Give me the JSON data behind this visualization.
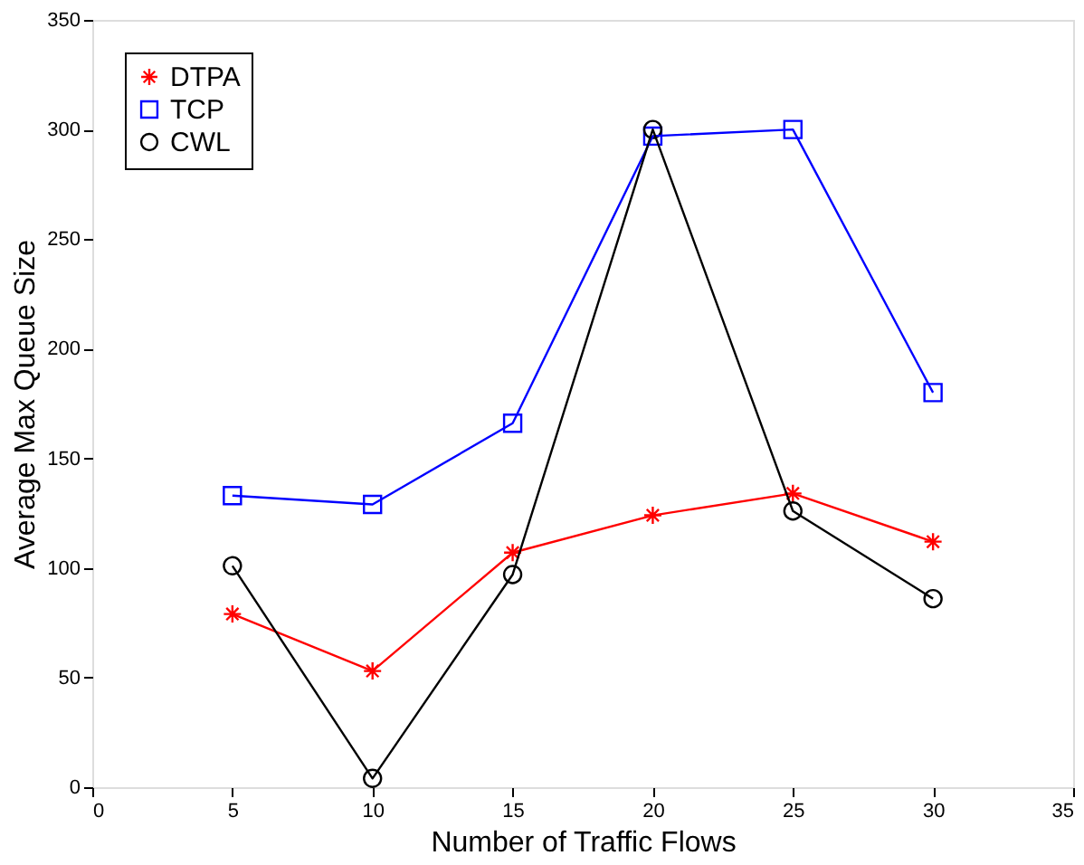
{
  "chart_data": {
    "type": "line",
    "xlabel": "Number of Traffic Flows",
    "ylabel": "Average Max Queue Size",
    "x": [
      5,
      10,
      15,
      20,
      25,
      30
    ],
    "series": [
      {
        "name": "DTPA",
        "color": "#ff0000",
        "marker": "cross",
        "values": [
          79,
          53,
          107,
          124,
          134,
          112
        ]
      },
      {
        "name": "TCP",
        "color": "#0000ff",
        "marker": "square",
        "values": [
          133,
          129,
          166,
          297,
          300,
          180
        ]
      },
      {
        "name": "CWL",
        "color": "#000000",
        "marker": "circle",
        "values": [
          101,
          4,
          97,
          300,
          126,
          86
        ]
      }
    ],
    "xlim": [
      0,
      35
    ],
    "xticks": [
      0,
      5,
      10,
      15,
      20,
      25,
      30,
      35
    ],
    "ylim": [
      0,
      350
    ],
    "yticks": [
      0,
      50,
      100,
      150,
      200,
      250,
      300,
      350
    ],
    "grid": false,
    "legend": "top left",
    "line_style": "solid"
  }
}
